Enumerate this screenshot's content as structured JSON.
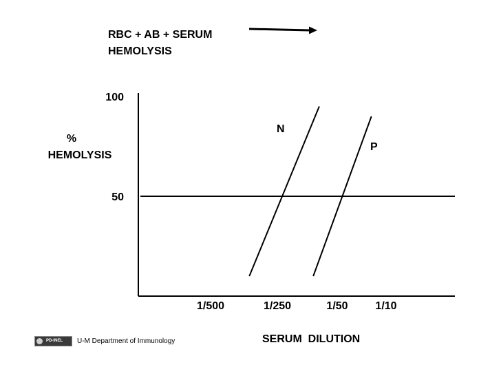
{
  "header": {
    "line1": "RBC + AB + SERUM",
    "line2": "HEMOLYSIS"
  },
  "footer": {
    "license_badge": "PD-INEL",
    "credit": "U-M Department of Immunology"
  },
  "chart_data": {
    "type": "line",
    "title": "",
    "xlabel": "SERUM  DILUTION",
    "ylabel": [
      "%",
      "HEMOLYSIS"
    ],
    "x_tick_labels": [
      "1/500",
      "1/250",
      "1/50",
      "1/10"
    ],
    "y_tick_labels": [
      "100",
      "50"
    ],
    "y_ticks": [
      100,
      50
    ],
    "ylim": [
      0,
      100
    ],
    "grid": false,
    "reference_line": {
      "y": 50
    },
    "series": [
      {
        "name": "N",
        "points": [
          {
            "x": 0.58,
            "y": 10
          },
          {
            "x": 1.7,
            "y": 95
          }
        ]
      },
      {
        "name": "P",
        "points": [
          {
            "x": 1.6,
            "y": 10
          },
          {
            "x": 2.7,
            "y": 90
          }
        ]
      }
    ]
  }
}
